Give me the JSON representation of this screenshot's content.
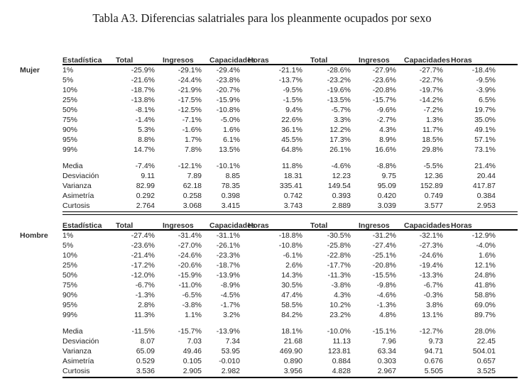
{
  "title": "Tabla A3. Diferencias salatriales para los pleanmente ocupados por sexo",
  "colors": {
    "background": "#ffffff",
    "text": "#222222",
    "rule": "#000000"
  },
  "table": {
    "columns": [
      "Estadística",
      "Total",
      "Ingresos",
      "Capacidades",
      "Horas",
      "Total",
      "Ingresos",
      "Capacidades",
      "Horas"
    ],
    "sections": [
      {
        "label": "Mujer",
        "percentile_rows": [
          [
            "1%",
            "-25.9%",
            "-29.1%",
            "-29.4%",
            "-21.1%",
            "-28.6%",
            "-27.9%",
            "-27.7%",
            "-18.4%"
          ],
          [
            "5%",
            "-21.6%",
            "-24.4%",
            "-23.8%",
            "-13.7%",
            "-23.2%",
            "-23.6%",
            "-22.7%",
            "-9.5%"
          ],
          [
            "10%",
            "-18.7%",
            "-21.9%",
            "-20.7%",
            "-9.5%",
            "-19.6%",
            "-20.8%",
            "-19.7%",
            "-3.9%"
          ],
          [
            "25%",
            "-13.8%",
            "-17.5%",
            "-15.9%",
            "-1.5%",
            "-13.5%",
            "-15.7%",
            "-14.2%",
            "6.5%"
          ],
          [
            "50%",
            "-8.1%",
            "-12.5%",
            "-10.8%",
            "9.4%",
            "-5.7%",
            "-9.6%",
            "-7.2%",
            "19.7%"
          ],
          [
            "75%",
            "-1.4%",
            "-7.1%",
            "-5.0%",
            "22.6%",
            "3.3%",
            "-2.7%",
            "1.3%",
            "35.0%"
          ],
          [
            "90%",
            "5.3%",
            "-1.6%",
            "1.6%",
            "36.1%",
            "12.2%",
            "4.3%",
            "11.7%",
            "49.1%"
          ],
          [
            "95%",
            "8.8%",
            "1.7%",
            "6.1%",
            "45.5%",
            "17.3%",
            "8.9%",
            "18.5%",
            "57.1%"
          ],
          [
            "99%",
            "14.7%",
            "7.8%",
            "13.5%",
            "64.8%",
            "26.1%",
            "16.6%",
            "29.8%",
            "73.1%"
          ]
        ],
        "stat_rows": [
          [
            "Media",
            "-7.4%",
            "-12.1%",
            "-10.1%",
            "11.8%",
            "-4.6%",
            "-8.8%",
            "-5.5%",
            "21.4%"
          ],
          [
            "Desviación",
            "9.11",
            "7.89",
            "8.85",
            "18.31",
            "12.23",
            "9.75",
            "12.36",
            "20.44"
          ],
          [
            "Varianza",
            "82.99",
            "62.18",
            "78.35",
            "335.41",
            "149.54",
            "95.09",
            "152.89",
            "417.87"
          ],
          [
            "Asimetría",
            "0.292",
            "0.258",
            "0.398",
            "0.742",
            "0.393",
            "0.420",
            "0.749",
            "0.384"
          ],
          [
            "Curtosis",
            "2.764",
            "3.068",
            "3.415",
            "3.743",
            "2.889",
            "3.039",
            "3.577",
            "2.953"
          ]
        ]
      },
      {
        "label": "Hombre",
        "percentile_rows": [
          [
            "1%",
            "-27.4%",
            "-31.4%",
            "-31.1%",
            "-18.8%",
            "-30.5%",
            "-31.2%",
            "-32.1%",
            "-12.9%"
          ],
          [
            "5%",
            "-23.6%",
            "-27.0%",
            "-26.1%",
            "-10.8%",
            "-25.8%",
            "-27.4%",
            "-27.3%",
            "-4.0%"
          ],
          [
            "10%",
            "-21.4%",
            "-24.6%",
            "-23.3%",
            "-6.1%",
            "-22.8%",
            "-25.1%",
            "-24.6%",
            "1.6%"
          ],
          [
            "25%",
            "-17.2%",
            "-20.6%",
            "-18.7%",
            "2.6%",
            "-17.7%",
            "-20.8%",
            "-19.4%",
            "12.1%"
          ],
          [
            "50%",
            "-12.0%",
            "-15.9%",
            "-13.9%",
            "14.3%",
            "-11.3%",
            "-15.5%",
            "-13.3%",
            "24.8%"
          ],
          [
            "75%",
            "-6.7%",
            "-11.0%",
            "-8.9%",
            "30.5%",
            "-3.8%",
            "-9.8%",
            "-6.7%",
            "41.8%"
          ],
          [
            "90%",
            "-1.3%",
            "-6.5%",
            "-4.5%",
            "47.4%",
            "4.3%",
            "-4.6%",
            "-0.3%",
            "58.8%"
          ],
          [
            "95%",
            "2.8%",
            "-3.8%",
            "-1.7%",
            "58.5%",
            "10.2%",
            "-1.3%",
            "3.8%",
            "69.0%"
          ],
          [
            "99%",
            "11.3%",
            "1.1%",
            "3.2%",
            "84.2%",
            "23.2%",
            "4.8%",
            "13.1%",
            "89.7%"
          ]
        ],
        "stat_rows": [
          [
            "Media",
            "-11.5%",
            "-15.7%",
            "-13.9%",
            "18.1%",
            "-10.0%",
            "-15.1%",
            "-12.7%",
            "28.0%"
          ],
          [
            "Desviación",
            "8.07",
            "7.03",
            "7.34",
            "21.68",
            "11.13",
            "7.96",
            "9.73",
            "22.45"
          ],
          [
            "Varianza",
            "65.09",
            "49.46",
            "53.95",
            "469.90",
            "123.81",
            "63.34",
            "94.71",
            "504.01"
          ],
          [
            "Asimetría",
            "0.529",
            "0.105",
            "-0.010",
            "0.890",
            "0.884",
            "0.303",
            "0.676",
            "0.657"
          ],
          [
            "Curtosis",
            "3.536",
            "2.905",
            "2.982",
            "3.956",
            "4.828",
            "2.967",
            "5.505",
            "3.525"
          ]
        ]
      }
    ]
  }
}
